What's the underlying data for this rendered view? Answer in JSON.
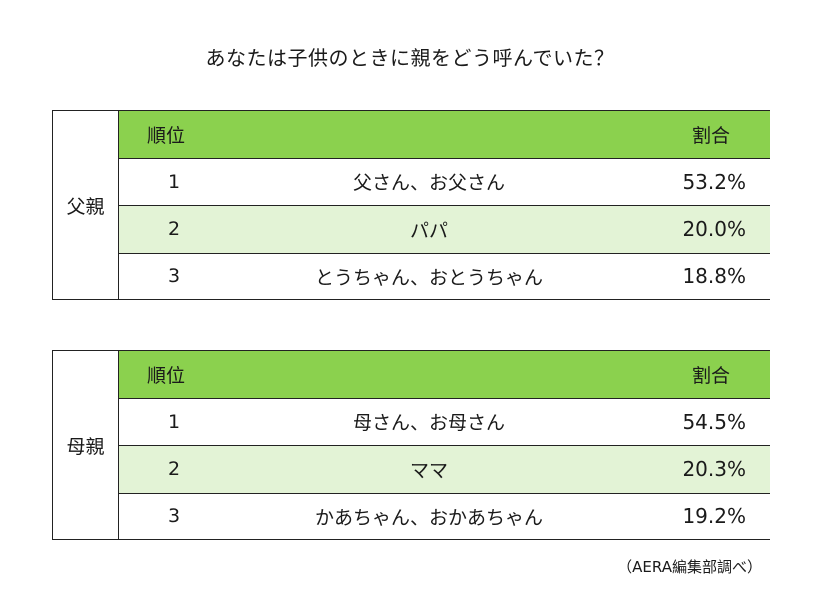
{
  "title": "あなたは子供のときに親をどう呼んでいた？",
  "source": "（AERA編集部調べ）",
  "colors": {
    "header_green": "#8bd14e",
    "alt_row_green": "#e3f3d6"
  },
  "chart_data": [
    {
      "type": "table",
      "group": "父親",
      "columns": [
        "順位",
        "",
        "割合"
      ],
      "rows": [
        {
          "rank": "1",
          "name": "父さん、お父さん",
          "pct": "53.2%",
          "value": 53.2
        },
        {
          "rank": "2",
          "name": "パパ",
          "pct": "20.0%",
          "value": 20.0
        },
        {
          "rank": "3",
          "name": "とうちゃん、おとうちゃん",
          "pct": "18.8%",
          "value": 18.8
        }
      ]
    },
    {
      "type": "table",
      "group": "母親",
      "columns": [
        "順位",
        "",
        "割合"
      ],
      "rows": [
        {
          "rank": "1",
          "name": "母さん、お母さん",
          "pct": "54.5%",
          "value": 54.5
        },
        {
          "rank": "2",
          "name": "ママ",
          "pct": "20.3%",
          "value": 20.3
        },
        {
          "rank": "3",
          "name": "かあちゃん、おかあちゃん",
          "pct": "19.2%",
          "value": 19.2
        }
      ]
    }
  ]
}
